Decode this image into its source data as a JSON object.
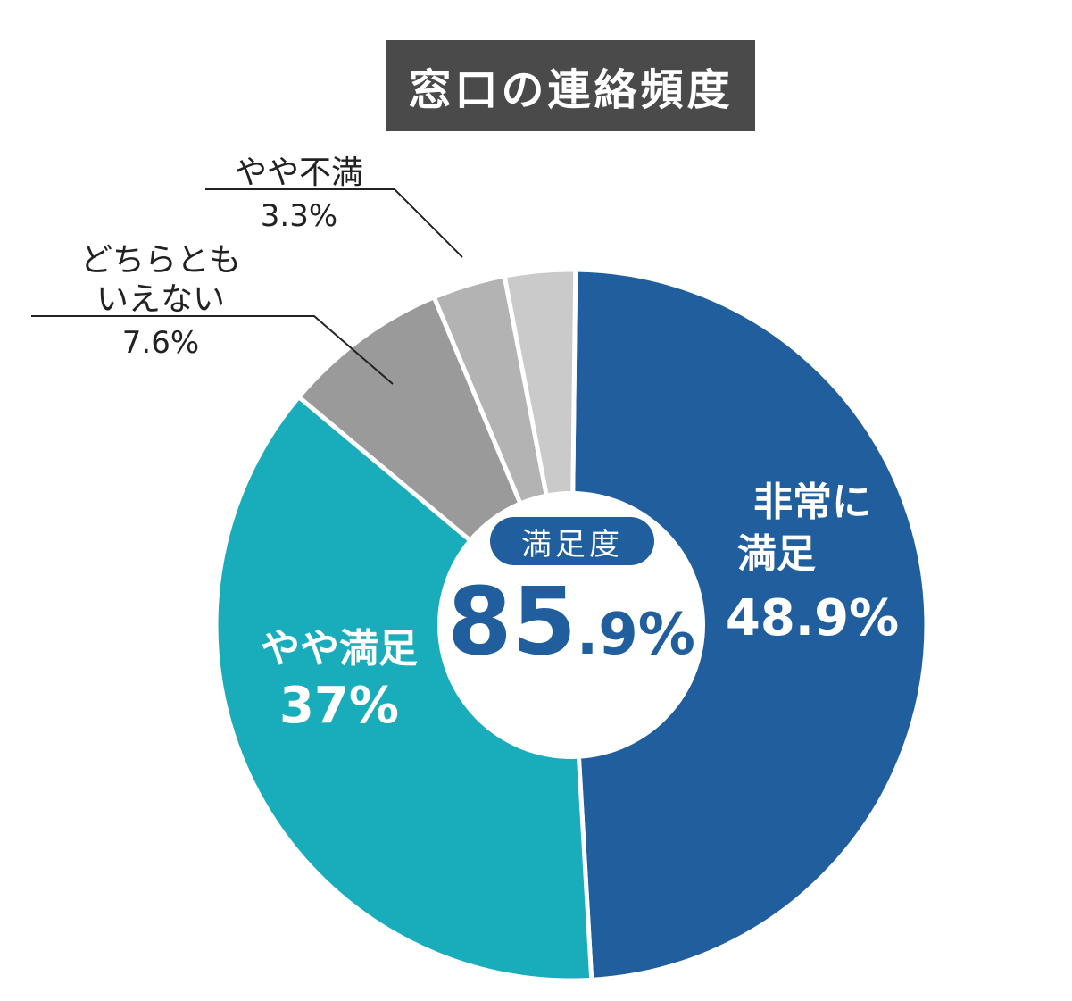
{
  "chart_data": {
    "type": "pie",
    "style": "donut",
    "title": "窓口の連絡頻度",
    "center": {
      "label": "満足度",
      "value_main": "85",
      "value_decimal": ".9%"
    },
    "slices": [
      {
        "name": "非常に満足",
        "name_line1": "非常に",
        "name_line2": "満足",
        "value": 48.9,
        "display": "48.9%",
        "color": "#205e9e"
      },
      {
        "name": "やや満足",
        "value": 37,
        "display": "37%",
        "color": "#19acbb"
      },
      {
        "name": "どちらともいえない",
        "name_line1": "どちらとも",
        "name_line2": "いえない",
        "value": 7.6,
        "display": "7.6%",
        "color": "#9a9a9a"
      },
      {
        "name": "やや不満",
        "value": 3.3,
        "display": "3.3%",
        "color": "#b3b3b3"
      },
      {
        "name": "",
        "value": 3.2,
        "display": "",
        "color": "#cacaca"
      }
    ]
  }
}
